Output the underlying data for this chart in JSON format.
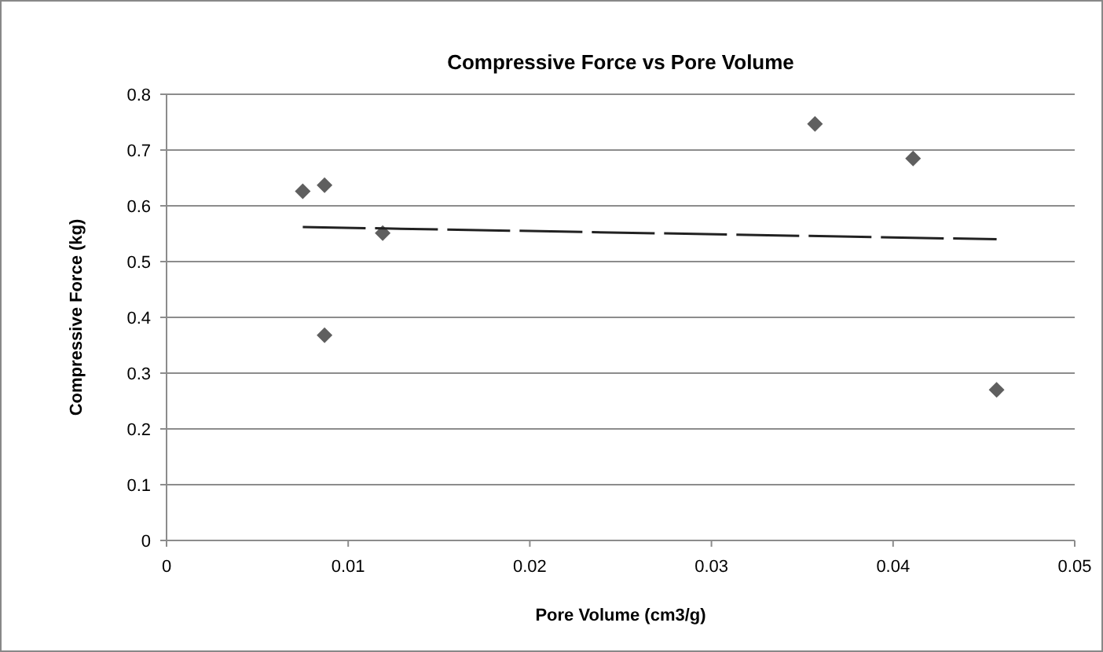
{
  "chart_data": {
    "type": "scatter",
    "title": "Compressive Force vs Pore Volume",
    "xlabel": "Pore Volume (cm3/g)",
    "ylabel": "Compressive Force (kg)",
    "xlim": [
      0,
      0.05
    ],
    "xticks": [
      0,
      0.01,
      0.02,
      0.03,
      0.04,
      0.05
    ],
    "ylim": [
      0,
      0.8
    ],
    "yticks": [
      0,
      0.1,
      0.2,
      0.3,
      0.4,
      0.5,
      0.6,
      0.7,
      0.8
    ],
    "grid": "y",
    "marker": "diamond",
    "series": [
      {
        "color": "#5f5f5f",
        "x": [
          0.0075,
          0.0087,
          0.0087,
          0.0119,
          0.0357,
          0.0411,
          0.0457
        ],
        "values": [
          0.626,
          0.637,
          0.368,
          0.551,
          0.747,
          0.685,
          0.27
        ]
      },
      {
        "type": "line",
        "color": "#222222",
        "line_style": "dashed",
        "marker": "none",
        "x": [
          0.0075,
          0.0457
        ],
        "values": [
          0.562,
          0.54
        ]
      }
    ]
  }
}
